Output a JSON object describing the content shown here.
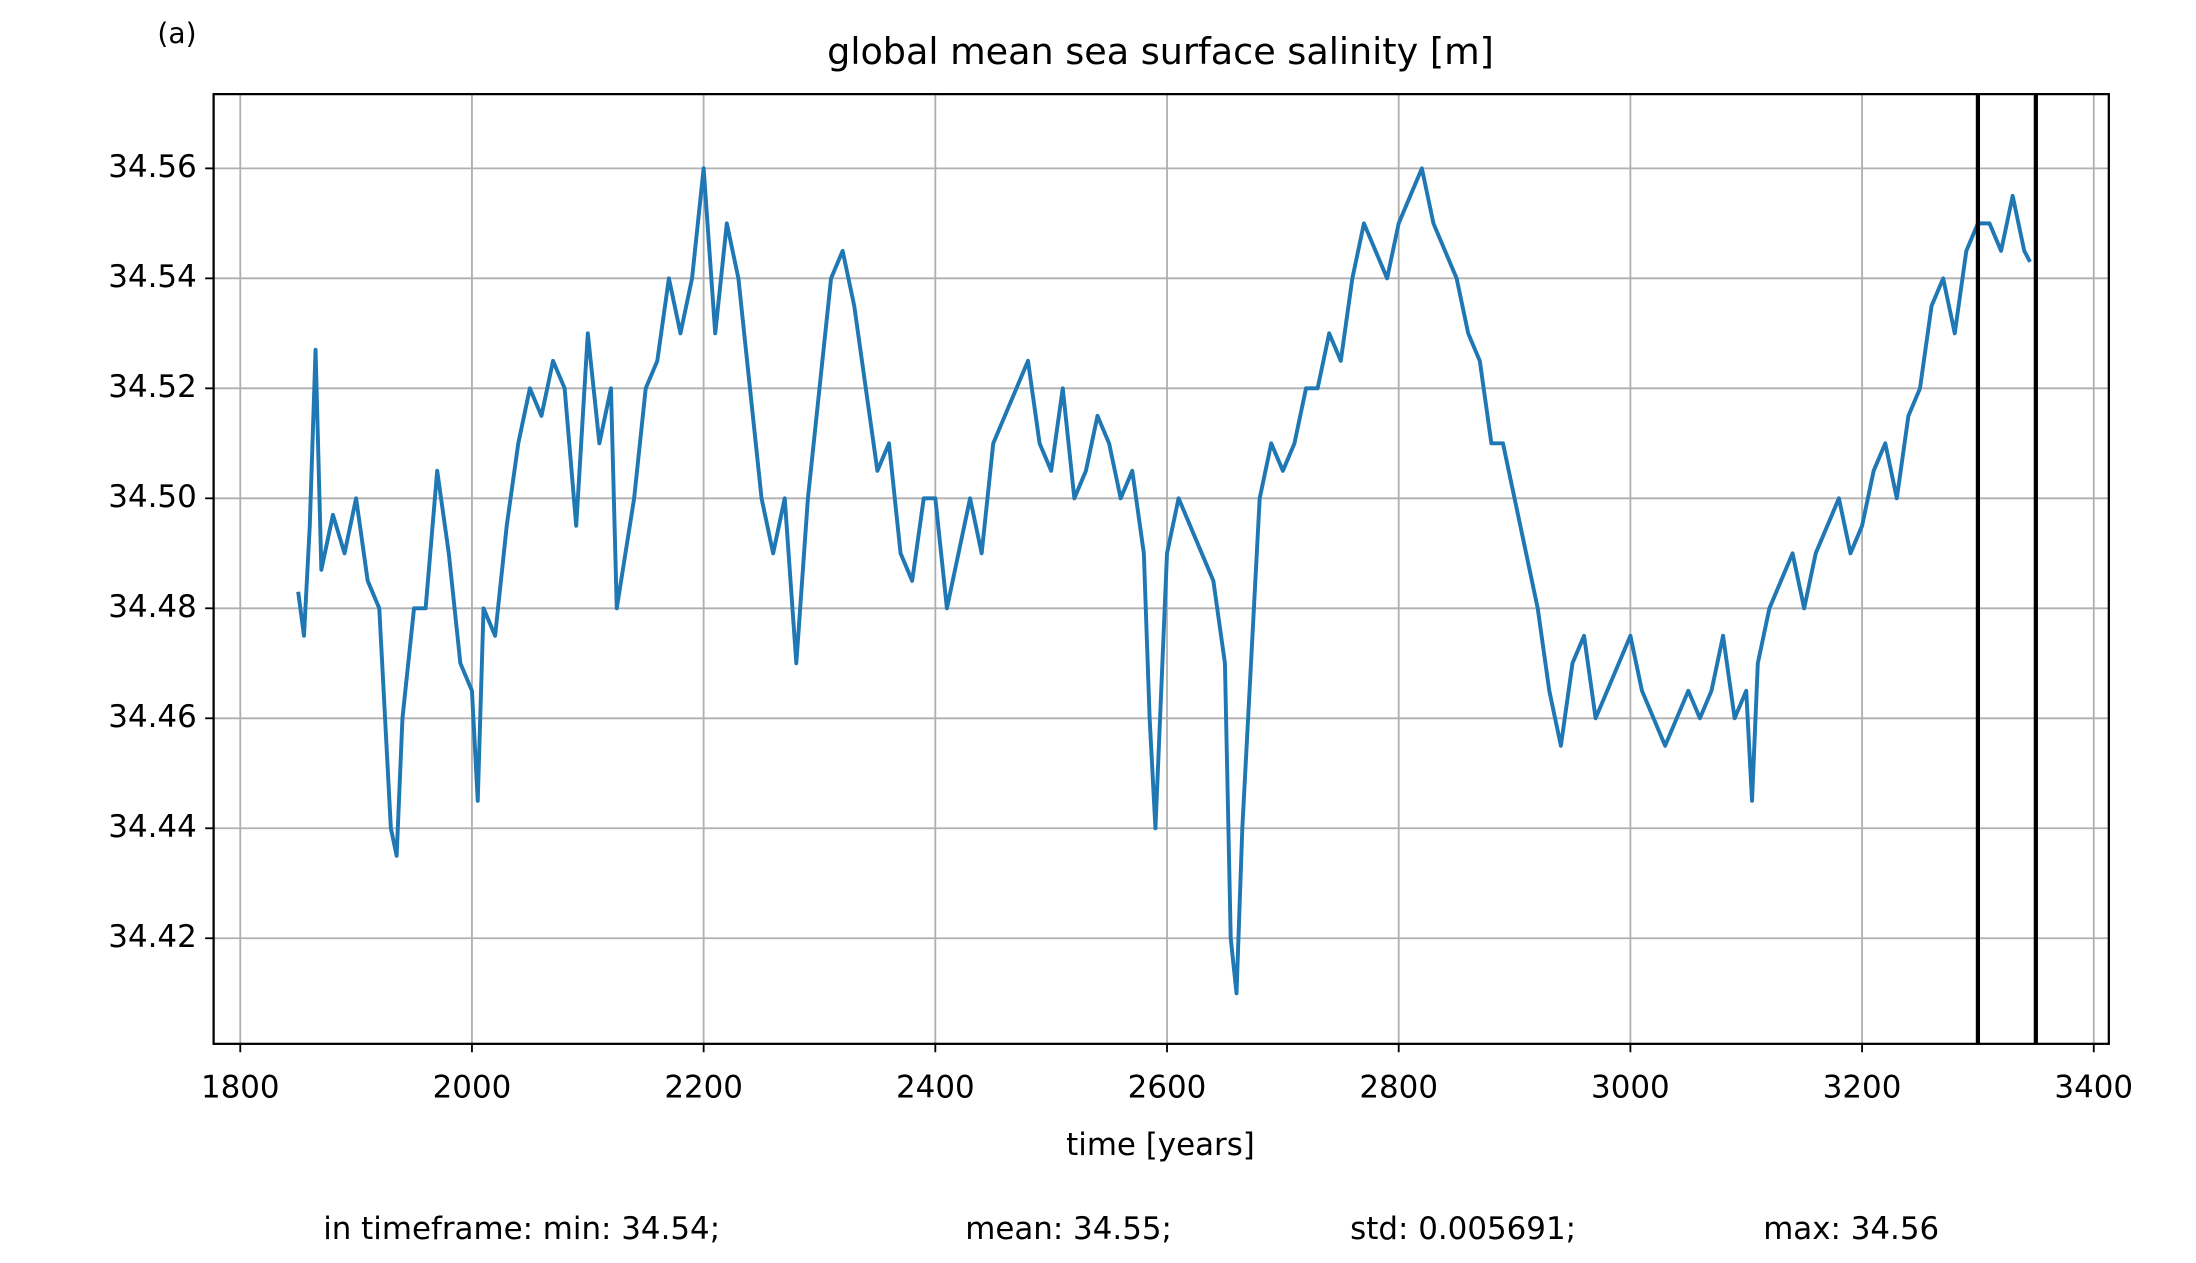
{
  "chart_data": {
    "type": "line",
    "panel_label": "(a)",
    "title": "global mean sea surface salinity [m]",
    "x_label": "time [years]",
    "stats": [
      "in timeframe: min: 34.54;",
      "mean: 34.55;",
      "std: 0.005691;",
      "max: 34.56"
    ],
    "x": [
      1850,
      1855,
      1860,
      1865,
      1870,
      1880,
      1890,
      1900,
      1910,
      1920,
      1930,
      1935,
      1940,
      1950,
      1960,
      1970,
      1980,
      1990,
      2000,
      2005,
      2010,
      2020,
      2030,
      2040,
      2050,
      2060,
      2070,
      2080,
      2090,
      2100,
      2110,
      2120,
      2125,
      2140,
      2150,
      2160,
      2170,
      2180,
      2190,
      2200,
      2210,
      2220,
      2230,
      2240,
      2250,
      2260,
      2270,
      2280,
      2290,
      2300,
      2310,
      2320,
      2330,
      2340,
      2350,
      2360,
      2370,
      2380,
      2390,
      2400,
      2410,
      2420,
      2430,
      2440,
      2450,
      2460,
      2470,
      2480,
      2490,
      2500,
      2510,
      2520,
      2530,
      2540,
      2550,
      2560,
      2570,
      2580,
      2585,
      2590,
      2600,
      2610,
      2620,
      2630,
      2640,
      2650,
      2655,
      2660,
      2665,
      2675,
      2680,
      2690,
      2700,
      2710,
      2720,
      2730,
      2740,
      2750,
      2760,
      2770,
      2780,
      2790,
      2800,
      2810,
      2820,
      2830,
      2840,
      2850,
      2860,
      2870,
      2880,
      2890,
      2900,
      2910,
      2920,
      2930,
      2940,
      2950,
      2960,
      2970,
      2980,
      2990,
      3000,
      3010,
      3020,
      3030,
      3040,
      3050,
      3060,
      3070,
      3080,
      3090,
      3100,
      3105,
      3110,
      3120,
      3130,
      3140,
      3150,
      3160,
      3170,
      3180,
      3190,
      3200,
      3210,
      3220,
      3230,
      3240,
      3250,
      3260,
      3270,
      3280,
      3290,
      3300,
      3310,
      3320,
      3330,
      3340,
      3345
    ],
    "series": [
      {
        "name": "global mean sea surface salinity",
        "color": "#1f77b4",
        "values": [
          34.483,
          34.475,
          34.495,
          34.527,
          34.487,
          34.497,
          34.49,
          34.5,
          34.485,
          34.48,
          34.44,
          34.435,
          34.46,
          34.48,
          34.48,
          34.505,
          34.49,
          34.47,
          34.465,
          34.445,
          34.48,
          34.475,
          34.495,
          34.51,
          34.52,
          34.515,
          34.525,
          34.52,
          34.495,
          34.53,
          34.51,
          34.52,
          34.48,
          34.5,
          34.52,
          34.525,
          34.54,
          34.53,
          34.54,
          34.56,
          34.53,
          34.55,
          34.54,
          34.52,
          34.5,
          34.49,
          34.5,
          34.47,
          34.5,
          34.52,
          34.54,
          34.545,
          34.535,
          34.52,
          34.505,
          34.51,
          34.49,
          34.485,
          34.5,
          34.5,
          34.48,
          34.49,
          34.5,
          34.49,
          34.51,
          34.515,
          34.52,
          34.525,
          34.51,
          34.505,
          34.52,
          34.5,
          34.505,
          34.515,
          34.51,
          34.5,
          34.505,
          34.49,
          34.46,
          34.44,
          34.49,
          34.5,
          34.495,
          34.49,
          34.485,
          34.47,
          34.42,
          34.41,
          34.44,
          34.48,
          34.5,
          34.51,
          34.505,
          34.51,
          34.52,
          34.52,
          34.53,
          34.525,
          34.54,
          34.55,
          34.545,
          34.54,
          34.55,
          34.555,
          34.56,
          34.55,
          34.545,
          34.54,
          34.53,
          34.525,
          34.51,
          34.51,
          34.5,
          34.49,
          34.48,
          34.465,
          34.455,
          34.47,
          34.475,
          34.46,
          34.465,
          34.47,
          34.475,
          34.465,
          34.46,
          34.455,
          34.46,
          34.465,
          34.46,
          34.465,
          34.475,
          34.46,
          34.465,
          34.445,
          34.47,
          34.48,
          34.485,
          34.49,
          34.48,
          34.49,
          34.495,
          34.5,
          34.49,
          34.495,
          34.505,
          34.51,
          34.5,
          34.515,
          34.52,
          34.535,
          34.54,
          34.53,
          34.545,
          34.55,
          34.55,
          34.545,
          34.555,
          34.545,
          34.543
        ]
      }
    ],
    "vlines": [
      3300,
      3350
    ],
    "vline_color": "#000000",
    "xlim": [
      1777,
      3413
    ],
    "ylim": [
      34.4008,
      34.5735
    ],
    "xticks": [
      1800,
      2000,
      2200,
      2400,
      2600,
      2800,
      3000,
      3200,
      3400
    ],
    "yticks": [
      34.42,
      34.44,
      34.46,
      34.48,
      {
        "value": 34.5,
        "label": "34.50"
      },
      34.52,
      34.54,
      34.56
    ],
    "grid": true
  }
}
